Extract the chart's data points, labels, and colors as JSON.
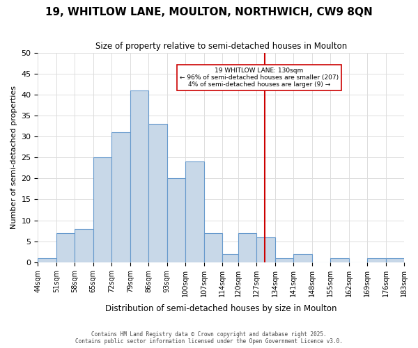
{
  "title": "19, WHITLOW LANE, MOULTON, NORTHWICH, CW9 8QN",
  "subtitle": "Size of property relative to semi-detached houses in Moulton",
  "xlabel": "Distribution of semi-detached houses by size in Moulton",
  "ylabel": "Number of semi-detached properties",
  "bins": [
    44,
    51,
    58,
    65,
    72,
    79,
    86,
    93,
    100,
    107,
    114,
    120,
    127,
    134,
    141,
    148,
    155,
    162,
    169,
    176,
    183
  ],
  "counts": [
    1,
    7,
    8,
    25,
    31,
    41,
    33,
    20,
    24,
    7,
    2,
    7,
    6,
    1,
    2,
    0,
    1,
    0,
    1,
    1
  ],
  "bar_facecolor": "#c8d8e8",
  "bar_edgecolor": "#6699cc",
  "vline_x": 130,
  "vline_color": "#cc0000",
  "annotation_title": "19 WHITLOW LANE: 130sqm",
  "annotation_line1": "← 96% of semi-detached houses are smaller (207)",
  "annotation_line2": "4% of semi-detached houses are larger (9) →",
  "annotation_box_color": "#ffffff",
  "annotation_box_edge": "#cc0000",
  "ylim": [
    0,
    50
  ],
  "yticks": [
    0,
    5,
    10,
    15,
    20,
    25,
    30,
    35,
    40,
    45,
    50
  ],
  "tick_labels": [
    "44sqm",
    "51sqm",
    "58sqm",
    "65sqm",
    "72sqm",
    "79sqm",
    "86sqm",
    "93sqm",
    "100sqm",
    "107sqm",
    "114sqm",
    "120sqm",
    "127sqm",
    "134sqm",
    "141sqm",
    "148sqm",
    "155sqm",
    "162sqm",
    "169sqm",
    "176sqm",
    "183sqm"
  ],
  "footer1": "Contains HM Land Registry data © Crown copyright and database right 2025.",
  "footer2": "Contains public sector information licensed under the Open Government Licence v3.0.",
  "bg_color": "#ffffff",
  "grid_color": "#dddddd"
}
